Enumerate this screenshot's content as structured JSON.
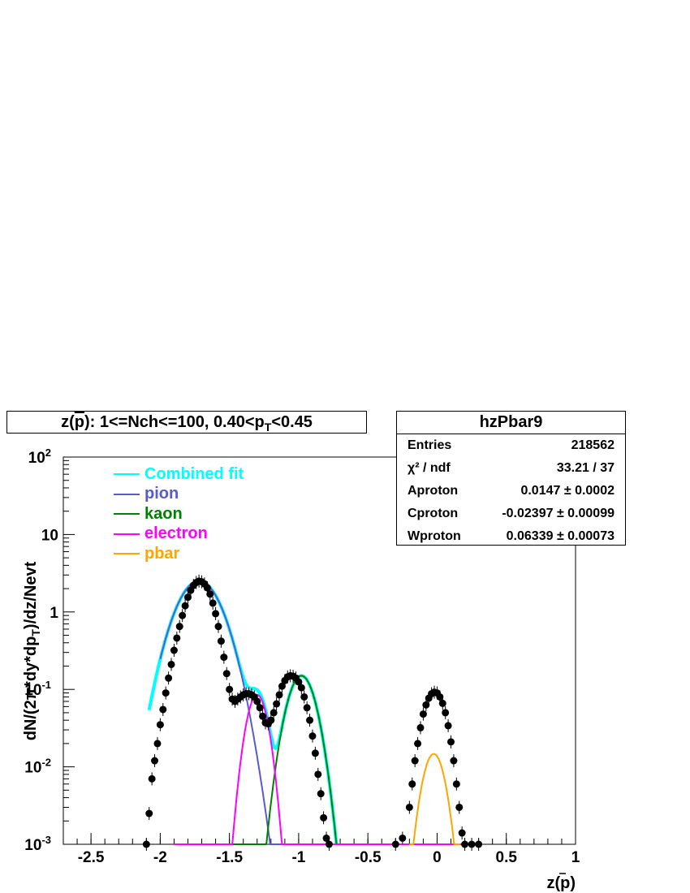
{
  "title": {
    "prefix": "z(",
    "particle": "p",
    "suffix": "): 1<=Nch<=100, 0.40<p",
    "sub": "T",
    "tail": "<0.45"
  },
  "stats": {
    "name": "hzPbar9",
    "rows": [
      {
        "label": "Entries",
        "value": "218562"
      },
      {
        "label": "χ² / ndf",
        "value": "33.21 / 37"
      },
      {
        "label": "Aproton",
        "value": "0.0147 ± 0.0002"
      },
      {
        "label": "Cproton",
        "value": "-0.02397 ± 0.00099"
      },
      {
        "label": "Wproton",
        "value": "0.06339 ± 0.00073"
      }
    ]
  },
  "legend": [
    {
      "label": "Combined fit",
      "color": "#00ffff"
    },
    {
      "label": "pion",
      "color": "#5a5acd"
    },
    {
      "label": "kaon",
      "color": "#008000"
    },
    {
      "label": "electron",
      "color": "#ff00ff"
    },
    {
      "label": "pbar",
      "color": "#ffa500"
    }
  ],
  "axes": {
    "ylabel_parts": [
      "dN/(2π*dy*dp",
      "T",
      ")/dz/Nevt"
    ],
    "xlabel": "z(p)",
    "xticks": [
      "-2.5",
      "-2",
      "-1.5",
      "-1",
      "-0.5",
      "0",
      "0.5",
      "1"
    ],
    "yticks": [
      "10^-3",
      "10^-2",
      "10^-1",
      "1",
      "10",
      "10^2"
    ]
  },
  "chart_data": {
    "type": "scatter",
    "yscale": "log",
    "xlim": [
      -2.7,
      1.0
    ],
    "ylim": [
      0.001,
      100
    ],
    "components": [
      {
        "name": "pion",
        "amplitude": 2.5,
        "mean": -1.72,
        "sigma": 0.13
      },
      {
        "name": "kaon",
        "amplitude": 0.15,
        "mean": -0.98,
        "sigma": 0.08
      },
      {
        "name": "electron",
        "amplitude": 0.085,
        "mean": -1.3,
        "sigma": 0.06
      },
      {
        "name": "pbar",
        "amplitude": 0.0147,
        "mean": -0.02397,
        "sigma": 0.06339
      }
    ],
    "points": [
      [
        -2.1,
        0.001
      ],
      [
        -2.08,
        0.0025
      ],
      [
        -2.06,
        0.007
      ],
      [
        -2.04,
        0.012
      ],
      [
        -2.02,
        0.02
      ],
      [
        -2.0,
        0.035
      ],
      [
        -1.98,
        0.055
      ],
      [
        -1.96,
        0.09
      ],
      [
        -1.94,
        0.14
      ],
      [
        -1.92,
        0.21
      ],
      [
        -1.9,
        0.32
      ],
      [
        -1.88,
        0.46
      ],
      [
        -1.86,
        0.65
      ],
      [
        -1.84,
        0.9
      ],
      [
        -1.82,
        1.2
      ],
      [
        -1.8,
        1.55
      ],
      [
        -1.78,
        1.9
      ],
      [
        -1.76,
        2.2
      ],
      [
        -1.74,
        2.4
      ],
      [
        -1.72,
        2.5
      ],
      [
        -1.7,
        2.45
      ],
      [
        -1.68,
        2.3
      ],
      [
        -1.66,
        2.05
      ],
      [
        -1.64,
        1.7
      ],
      [
        -1.62,
        1.3
      ],
      [
        -1.6,
        0.95
      ],
      [
        -1.58,
        0.65
      ],
      [
        -1.56,
        0.42
      ],
      [
        -1.54,
        0.26
      ],
      [
        -1.52,
        0.16
      ],
      [
        -1.5,
        0.1
      ],
      [
        -1.48,
        0.075
      ],
      [
        -1.46,
        0.07
      ],
      [
        -1.44,
        0.075
      ],
      [
        -1.42,
        0.08
      ],
      [
        -1.4,
        0.085
      ],
      [
        -1.38,
        0.088
      ],
      [
        -1.36,
        0.088
      ],
      [
        -1.34,
        0.085
      ],
      [
        -1.32,
        0.08
      ],
      [
        -1.3,
        0.07
      ],
      [
        -1.28,
        0.058
      ],
      [
        -1.26,
        0.045
      ],
      [
        -1.24,
        0.037
      ],
      [
        -1.22,
        0.036
      ],
      [
        -1.2,
        0.04
      ],
      [
        -1.18,
        0.05
      ],
      [
        -1.16,
        0.065
      ],
      [
        -1.14,
        0.085
      ],
      [
        -1.12,
        0.11
      ],
      [
        -1.1,
        0.13
      ],
      [
        -1.08,
        0.145
      ],
      [
        -1.06,
        0.15
      ],
      [
        -1.04,
        0.148
      ],
      [
        -1.02,
        0.14
      ],
      [
        -1.0,
        0.125
      ],
      [
        -0.98,
        0.105
      ],
      [
        -0.96,
        0.08
      ],
      [
        -0.94,
        0.058
      ],
      [
        -0.92,
        0.04
      ],
      [
        -0.9,
        0.025
      ],
      [
        -0.88,
        0.015
      ],
      [
        -0.86,
        0.008
      ],
      [
        -0.84,
        0.0045
      ],
      [
        -0.82,
        0.0022
      ],
      [
        -0.8,
        0.0012
      ],
      [
        -0.78,
        0.001
      ],
      [
        -0.3,
        0.001
      ],
      [
        -0.25,
        0.0012
      ],
      [
        -0.2,
        0.003
      ],
      [
        -0.18,
        0.006
      ],
      [
        -0.16,
        0.012
      ],
      [
        -0.14,
        0.02
      ],
      [
        -0.12,
        0.032
      ],
      [
        -0.1,
        0.048
      ],
      [
        -0.08,
        0.063
      ],
      [
        -0.06,
        0.077
      ],
      [
        -0.04,
        0.088
      ],
      [
        -0.02,
        0.092
      ],
      [
        0.0,
        0.09
      ],
      [
        0.02,
        0.08
      ],
      [
        0.04,
        0.066
      ],
      [
        0.06,
        0.05
      ],
      [
        0.08,
        0.034
      ],
      [
        0.1,
        0.021
      ],
      [
        0.12,
        0.012
      ],
      [
        0.14,
        0.006
      ],
      [
        0.16,
        0.003
      ],
      [
        0.18,
        0.0014
      ],
      [
        0.2,
        0.001
      ],
      [
        0.25,
        0.001
      ],
      [
        0.3,
        0.001
      ]
    ]
  }
}
